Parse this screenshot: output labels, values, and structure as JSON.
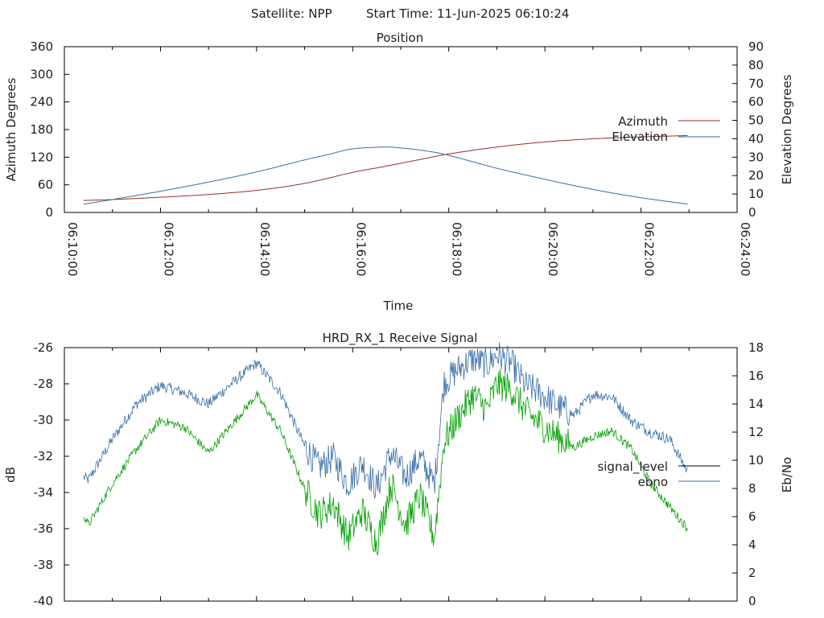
{
  "header": {
    "satellite_label": "Satellite: NPP",
    "start_label": "Start Time: 11-Jun-2025 06:10:24"
  },
  "colors": {
    "azimuth": "#a02a2a",
    "elevation": "#3a6ea8",
    "signal_level": "#00a000",
    "ebno": "#3a6ea8",
    "legend_signal_level_sample": "#000000"
  },
  "chart_data": [
    {
      "type": "line",
      "title": "Position",
      "xlabel": "Time",
      "ylabel": "Azimuth Degrees",
      "y2label": "Elevation Degrees",
      "xlim_minutes": [
        0,
        14
      ],
      "x_tick_labels": [
        "06:10:00",
        "06:12:00",
        "06:14:00",
        "06:16:00",
        "06:18:00",
        "06:20:00",
        "06:22:00",
        "06:24:00"
      ],
      "ylim": [
        0,
        360
      ],
      "y_ticks": [
        0,
        60,
        120,
        180,
        240,
        300,
        360
      ],
      "y2lim": [
        0,
        90
      ],
      "y2_ticks": [
        0,
        10,
        20,
        30,
        40,
        50,
        60,
        70,
        80,
        90
      ],
      "legend_position": "right",
      "series": [
        {
          "name": "Azimuth",
          "axis": "y",
          "x_minutes": [
            0.4,
            1.0,
            2.0,
            3.0,
            4.0,
            5.0,
            6.0,
            6.67,
            7.5,
            8.0,
            9.0,
            10.0,
            11.0,
            12.0,
            12.97
          ],
          "values": [
            26,
            28,
            33,
            39,
            48,
            63,
            87,
            100,
            117,
            127,
            142,
            153,
            160,
            164,
            167
          ]
        },
        {
          "name": "Elevation",
          "axis": "y2",
          "x_minutes": [
            0.4,
            1.0,
            2.0,
            3.0,
            4.0,
            5.0,
            5.5,
            6.0,
            6.67,
            7.0,
            7.5,
            8.0,
            9.0,
            10.0,
            11.0,
            12.0,
            12.97
          ],
          "values": [
            4.5,
            7,
            11.5,
            16.5,
            22,
            28.5,
            31.5,
            34.5,
            35.5,
            35,
            33.5,
            31,
            24,
            18,
            12.5,
            8,
            4.5
          ]
        }
      ]
    },
    {
      "type": "line",
      "title": "HRD_RX_1 Receive Signal",
      "ylabel": "dB",
      "y2label": "Eb/No",
      "xlim_minutes": [
        0,
        14
      ],
      "ylim": [
        -40,
        -26
      ],
      "y_ticks": [
        -40,
        -38,
        -36,
        -34,
        -32,
        -30,
        -28,
        -26
      ],
      "y2lim": [
        0,
        18
      ],
      "y2_ticks": [
        0,
        2,
        4,
        6,
        8,
        10,
        12,
        14,
        16,
        18
      ],
      "legend_position": "right",
      "series": [
        {
          "name": "signal_level",
          "axis": "y",
          "x_minutes": [
            0.4,
            0.5,
            1.0,
            1.5,
            2.0,
            2.5,
            3.0,
            3.5,
            4.0,
            4.5,
            5.0,
            5.3,
            5.6,
            5.9,
            6.2,
            6.5,
            6.8,
            7.1,
            7.4,
            7.7,
            7.9,
            8.2,
            8.5,
            8.8,
            9.0,
            9.3,
            9.6,
            9.8,
            10.2,
            10.6,
            11.0,
            11.4,
            11.8,
            12.2,
            12.6,
            12.97
          ],
          "values": [
            -35.2,
            -35.8,
            -33.5,
            -31.6,
            -30.0,
            -30.4,
            -31.8,
            -30.2,
            -28.6,
            -30.6,
            -33.8,
            -35.2,
            -34.6,
            -36.5,
            -35.0,
            -36.8,
            -33.5,
            -35.8,
            -34.2,
            -36.5,
            -31.2,
            -29.8,
            -28.6,
            -29.4,
            -28.0,
            -28.3,
            -29.5,
            -30.0,
            -30.8,
            -31.5,
            -30.9,
            -30.6,
            -31.6,
            -33.5,
            -34.8,
            -36.0
          ]
        },
        {
          "name": "ebno",
          "axis": "y2",
          "x_minutes": [
            0.4,
            0.5,
            1.0,
            1.5,
            2.0,
            2.5,
            3.0,
            3.5,
            4.0,
            4.5,
            5.0,
            5.3,
            5.6,
            5.9,
            6.2,
            6.5,
            6.8,
            7.1,
            7.4,
            7.7,
            7.9,
            8.2,
            8.5,
            8.8,
            9.0,
            9.3,
            9.6,
            9.8,
            10.2,
            10.6,
            11.0,
            11.4,
            11.8,
            12.2,
            12.6,
            12.97
          ],
          "values": [
            8.8,
            8.6,
            11.5,
            14.0,
            15.3,
            14.8,
            14.0,
            15.5,
            16.9,
            14.8,
            11.0,
            9.5,
            10.2,
            8.3,
            9.8,
            8.0,
            10.5,
            8.8,
            10.2,
            8.3,
            15.5,
            16.5,
            17.2,
            16.8,
            17.5,
            16.9,
            15.3,
            15.0,
            14.0,
            13.2,
            14.7,
            14.5,
            12.8,
            12.0,
            11.5,
            9.2
          ]
        }
      ]
    }
  ]
}
